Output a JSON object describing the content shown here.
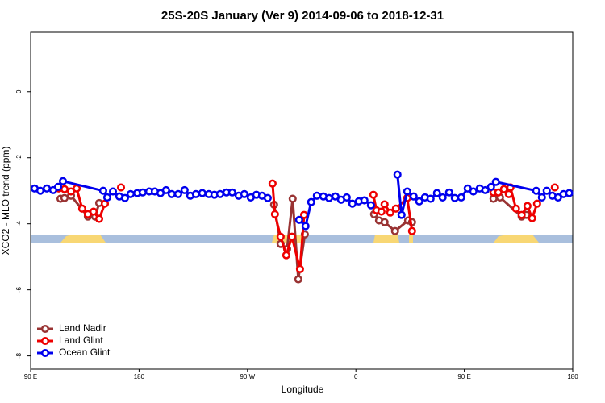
{
  "chart_data": {
    "type": "line",
    "title": "25S-20S January (Ver 9)   2014-09-06 to 2018-12-31",
    "xlabel": "Longitude",
    "ylabel": "XCO2 - MLO trend (ppm)",
    "xlim": [
      90,
      540
    ],
    "ylim": [
      -8.4,
      1.8
    ],
    "xticks": [
      {
        "value": 90,
        "label": "90 E"
      },
      {
        "value": 180,
        "label": "180"
      },
      {
        "value": 270,
        "label": "90 W"
      },
      {
        "value": 360,
        "label": "0"
      },
      {
        "value": 450,
        "label": "90 E"
      },
      {
        "value": 540,
        "label": "180"
      }
    ],
    "yticks": [
      0,
      -2,
      -4,
      -6,
      -8
    ],
    "legend": "bottom-left",
    "series": [
      {
        "name": "Land Nadir",
        "color": "#993333",
        "x": [
          114.8,
          118.1,
          123.5,
          137.5,
          143.5,
          146.9,
          null,
          292.1,
          297.5,
          302.9,
          307.5,
          312.2,
          317.6,
          null,
          375.1,
          379.2,
          383.8,
          392.5,
          403.3,
          406.6,
          null,
          474.2,
          479.6,
          497.6,
          501.6
        ],
        "values": [
          -3.24,
          -3.22,
          -3.15,
          -3.78,
          -3.78,
          -3.37,
          null,
          -3.42,
          -4.61,
          -4.76,
          -3.24,
          -5.68,
          -4.32,
          null,
          -3.71,
          -3.9,
          -3.95,
          -4.22,
          -3.9,
          -3.95,
          null,
          -3.24,
          -3.2,
          -3.78,
          -3.73
        ]
      },
      {
        "name": "Land Glint",
        "color": "#ee0000",
        "x": [
          113.4,
          118.1,
          123.5,
          128.2,
          132.8,
          137.5,
          142.2,
          146.9,
          151.6,
          null,
          165.0,
          null,
          290.8,
          292.8,
          297.5,
          302.2,
          306.9,
          313.6,
          317.0,
          null,
          374.5,
          377.1,
          381.2,
          383.8,
          388.5,
          393.2,
          402.6,
          406.6,
          null,
          474.2,
          478.2,
          482.9,
          486.9,
          488.3,
          492.9,
          497.6,
          502.4,
          506.3,
          510.4,
          null,
          525.1
        ],
        "values": [
          -2.93,
          -2.95,
          -3.02,
          -2.93,
          -3.54,
          -3.71,
          -3.63,
          -3.85,
          -3.39,
          null,
          -2.9,
          null,
          -2.78,
          -3.71,
          -4.39,
          -4.95,
          -4.39,
          -5.37,
          -3.73,
          null,
          -3.12,
          -3.59,
          -3.63,
          -3.41,
          -3.66,
          -3.54,
          -3.22,
          -4.22,
          null,
          -3.05,
          -3.05,
          -2.95,
          -3.1,
          -2.9,
          -3.54,
          -3.73,
          -3.46,
          -3.83,
          -3.39,
          null,
          -2.9
        ]
      },
      {
        "name": "Ocean Glint",
        "color": "#0000ee",
        "x": [
          93.3,
          98.0,
          103.4,
          108.7,
          112.8,
          116.8,
          150.2,
          153.6,
          158.3,
          163.6,
          168.3,
          173.0,
          178.4,
          183.0,
          188.4,
          193.1,
          197.8,
          202.4,
          207.1,
          212.5,
          217.8,
          222.5,
          227.2,
          232.5,
          237.9,
          242.6,
          247.3,
          252.6,
          257.3,
          262.7,
          267.4,
          272.7,
          277.4,
          282.1,
          286.8,
          null,
          312.9,
          318.2,
          322.9,
          327.6,
          333.0,
          337.7,
          343.0,
          347.7,
          352.4,
          357.1,
          362.4,
          367.1,
          372.5,
          null,
          394.5,
          397.9,
          402.6,
          407.9,
          412.6,
          417.3,
          422.0,
          427.3,
          432.0,
          437.4,
          442.1,
          447.4,
          452.8,
          457.5,
          462.8,
          467.5,
          472.2,
          476.2,
          509.7,
          514.4,
          518.4,
          523.1,
          527.8,
          532.4,
          537.1
        ],
        "values": [
          -2.93,
          -3.0,
          -2.93,
          -2.98,
          -2.88,
          -2.71,
          -3.0,
          -3.2,
          -3.02,
          -3.17,
          -3.22,
          -3.1,
          -3.07,
          -3.05,
          -3.02,
          -3.02,
          -3.07,
          -2.98,
          -3.1,
          -3.1,
          -2.98,
          -3.15,
          -3.1,
          -3.07,
          -3.1,
          -3.12,
          -3.1,
          -3.05,
          -3.05,
          -3.15,
          -3.1,
          -3.2,
          -3.12,
          -3.15,
          -3.22,
          null,
          -3.88,
          -4.07,
          -3.34,
          -3.15,
          -3.17,
          -3.22,
          -3.17,
          -3.27,
          -3.2,
          -3.39,
          -3.32,
          -3.29,
          -3.44,
          null,
          -2.51,
          -3.73,
          -3.02,
          -3.17,
          -3.32,
          -3.2,
          -3.24,
          -3.07,
          -3.2,
          -3.05,
          -3.22,
          -3.2,
          -2.93,
          -3.02,
          -2.93,
          -2.98,
          -2.88,
          -2.73,
          -3.0,
          -3.2,
          -3.0,
          -3.15,
          -3.2,
          -3.1,
          -3.07
        ]
      }
    ]
  }
}
